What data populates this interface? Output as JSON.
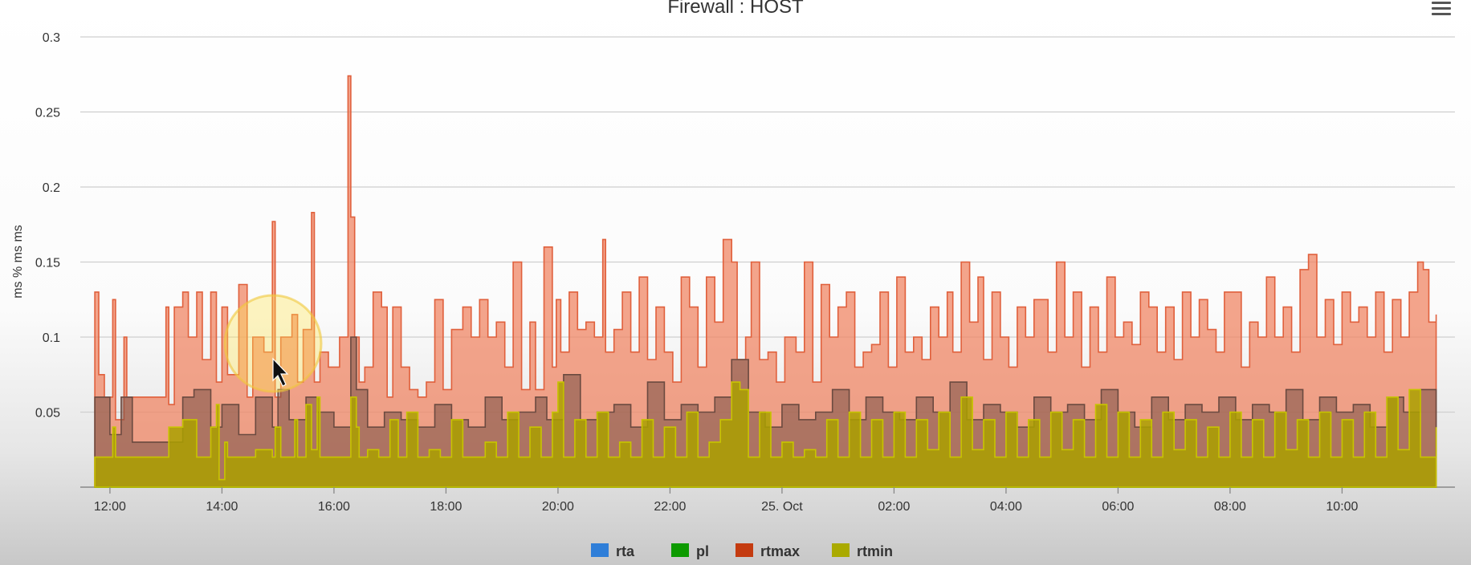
{
  "chart_data": {
    "type": "area",
    "title": "Firewall : HOST",
    "ylabel": "ms % ms ms",
    "xlabel": "",
    "ylim": [
      0,
      0.3
    ],
    "y_ticks": [
      "0.05",
      "0.1",
      "0.15",
      "0.2",
      "0.25",
      "0.3"
    ],
    "y_tick_values": [
      0.05,
      0.1,
      0.15,
      0.2,
      0.25,
      0.3
    ],
    "x_ticks": [
      "12:00",
      "14:00",
      "16:00",
      "18:00",
      "20:00",
      "22:00",
      "25. Oct",
      "02:00",
      "04:00",
      "06:00",
      "08:00",
      "10:00"
    ],
    "x_tick_hours": [
      12,
      14,
      16,
      18,
      20,
      22,
      24,
      26,
      28,
      30,
      32,
      34
    ],
    "xlim_hours": [
      11.7,
      35.7
    ],
    "x_unit_note": "hours after 00:00 on 24 Oct",
    "grid": true,
    "legend_position": "bottom-center",
    "series": [
      {
        "name": "rta",
        "color": "#2f7ed8",
        "x": [
          11.73,
          12.0,
          12.2,
          12.4,
          12.6,
          12.8,
          13.0,
          13.3,
          13.5,
          13.8,
          14.0,
          14.3,
          14.6,
          14.9,
          15.0,
          15.2,
          15.5,
          15.7,
          16.0,
          16.3,
          16.4,
          16.6,
          16.9,
          17.2,
          17.5,
          17.8,
          18.1,
          18.4,
          18.7,
          19.0,
          19.3,
          19.6,
          19.8,
          20.1,
          20.4,
          20.7,
          21.0,
          21.3,
          21.6,
          21.9,
          22.2,
          22.5,
          22.8,
          23.1,
          23.4,
          23.7,
          24.0,
          24.3,
          24.6,
          24.9,
          25.2,
          25.5,
          25.8,
          26.1,
          26.4,
          26.7,
          27.0,
          27.3,
          27.6,
          27.9,
          28.2,
          28.5,
          28.8,
          29.1,
          29.4,
          29.7,
          30.0,
          30.3,
          30.6,
          30.9,
          31.2,
          31.5,
          31.8,
          32.1,
          32.4,
          32.7,
          33.0,
          33.3,
          33.6,
          33.9,
          34.2,
          34.5,
          34.8,
          35.1,
          35.4,
          35.68
        ],
        "y": [
          0.06,
          0.035,
          0.06,
          0.03,
          0.03,
          0.03,
          0.03,
          0.06,
          0.065,
          0.04,
          0.055,
          0.035,
          0.06,
          0.04,
          0.065,
          0.045,
          0.06,
          0.05,
          0.04,
          0.1,
          0.065,
          0.04,
          0.05,
          0.045,
          0.04,
          0.055,
          0.045,
          0.04,
          0.06,
          0.045,
          0.05,
          0.06,
          0.045,
          0.075,
          0.045,
          0.05,
          0.055,
          0.04,
          0.07,
          0.045,
          0.055,
          0.05,
          0.06,
          0.085,
          0.05,
          0.04,
          0.055,
          0.045,
          0.05,
          0.065,
          0.045,
          0.06,
          0.05,
          0.045,
          0.06,
          0.05,
          0.07,
          0.045,
          0.055,
          0.05,
          0.04,
          0.06,
          0.05,
          0.055,
          0.045,
          0.065,
          0.05,
          0.04,
          0.06,
          0.045,
          0.055,
          0.05,
          0.06,
          0.045,
          0.055,
          0.05,
          0.065,
          0.045,
          0.06,
          0.05,
          0.055,
          0.04,
          0.06,
          0.05,
          0.065,
          0.055
        ]
      },
      {
        "name": "pl",
        "color": "#0d9a00",
        "x": [
          11.73,
          35.68
        ],
        "y": [
          0,
          0
        ]
      },
      {
        "name": "rtmax",
        "color": "#c43b10",
        "x": [
          11.73,
          11.8,
          11.9,
          12.05,
          12.1,
          12.25,
          12.3,
          12.5,
          12.7,
          12.9,
          13.0,
          13.05,
          13.15,
          13.3,
          13.4,
          13.55,
          13.65,
          13.8,
          13.9,
          14.0,
          14.1,
          14.3,
          14.45,
          14.55,
          14.75,
          14.9,
          14.95,
          15.05,
          15.25,
          15.35,
          15.45,
          15.6,
          15.65,
          15.75,
          15.9,
          16.1,
          16.25,
          16.3,
          16.37,
          16.45,
          16.55,
          16.7,
          16.85,
          16.95,
          17.05,
          17.2,
          17.35,
          17.5,
          17.65,
          17.8,
          17.95,
          18.1,
          18.3,
          18.45,
          18.6,
          18.75,
          18.9,
          19.05,
          19.2,
          19.35,
          19.5,
          19.6,
          19.75,
          19.9,
          19.97,
          20.05,
          20.2,
          20.35,
          20.5,
          20.65,
          20.8,
          20.85,
          21.0,
          21.15,
          21.3,
          21.45,
          21.6,
          21.75,
          21.9,
          22.05,
          22.2,
          22.35,
          22.5,
          22.65,
          22.8,
          22.95,
          23.1,
          23.2,
          23.35,
          23.45,
          23.6,
          23.75,
          23.9,
          24.05,
          24.25,
          24.4,
          24.55,
          24.7,
          24.85,
          25.0,
          25.15,
          25.3,
          25.45,
          25.6,
          25.75,
          25.9,
          26.05,
          26.2,
          26.35,
          26.5,
          26.65,
          26.8,
          26.95,
          27.05,
          27.2,
          27.35,
          27.5,
          27.6,
          27.75,
          27.9,
          28.05,
          28.2,
          28.35,
          28.5,
          28.65,
          28.75,
          28.9,
          29.05,
          29.2,
          29.35,
          29.5,
          29.65,
          29.8,
          29.95,
          30.1,
          30.25,
          30.4,
          30.55,
          30.7,
          30.85,
          31.0,
          31.15,
          31.3,
          31.45,
          31.6,
          31.75,
          31.9,
          32.05,
          32.2,
          32.35,
          32.5,
          32.65,
          32.8,
          32.95,
          33.1,
          33.25,
          33.4,
          33.55,
          33.7,
          33.85,
          34.0,
          34.15,
          34.3,
          34.45,
          34.6,
          34.75,
          34.9,
          35.05,
          35.2,
          35.35,
          35.45,
          35.55,
          35.68
        ],
        "y": [
          0.13,
          0.075,
          0.06,
          0.125,
          0.045,
          0.1,
          0.06,
          0.06,
          0.06,
          0.06,
          0.12,
          0.055,
          0.12,
          0.13,
          0.1,
          0.13,
          0.085,
          0.13,
          0.07,
          0.12,
          0.075,
          0.135,
          0.06,
          0.1,
          0.09,
          0.177,
          0.06,
          0.1,
          0.115,
          0.07,
          0.105,
          0.183,
          0.07,
          0.09,
          0.08,
          0.1,
          0.274,
          0.18,
          0.1,
          0.07,
          0.08,
          0.13,
          0.12,
          0.06,
          0.12,
          0.08,
          0.065,
          0.06,
          0.07,
          0.125,
          0.065,
          0.105,
          0.12,
          0.1,
          0.125,
          0.1,
          0.11,
          0.08,
          0.15,
          0.065,
          0.11,
          0.065,
          0.16,
          0.08,
          0.125,
          0.09,
          0.13,
          0.105,
          0.11,
          0.1,
          0.165,
          0.09,
          0.105,
          0.13,
          0.09,
          0.14,
          0.085,
          0.12,
          0.09,
          0.07,
          0.14,
          0.12,
          0.08,
          0.14,
          0.11,
          0.165,
          0.15,
          0.085,
          0.1,
          0.15,
          0.085,
          0.09,
          0.07,
          0.1,
          0.09,
          0.15,
          0.07,
          0.135,
          0.1,
          0.12,
          0.13,
          0.08,
          0.09,
          0.095,
          0.13,
          0.08,
          0.14,
          0.09,
          0.1,
          0.085,
          0.12,
          0.1,
          0.13,
          0.09,
          0.15,
          0.11,
          0.14,
          0.085,
          0.13,
          0.1,
          0.08,
          0.12,
          0.1,
          0.125,
          0.125,
          0.09,
          0.15,
          0.1,
          0.13,
          0.08,
          0.12,
          0.09,
          0.14,
          0.1,
          0.11,
          0.095,
          0.13,
          0.12,
          0.09,
          0.12,
          0.085,
          0.13,
          0.1,
          0.125,
          0.105,
          0.09,
          0.13,
          0.13,
          0.08,
          0.11,
          0.1,
          0.14,
          0.1,
          0.12,
          0.09,
          0.145,
          0.155,
          0.1,
          0.125,
          0.095,
          0.13,
          0.11,
          0.12,
          0.1,
          0.13,
          0.09,
          0.125,
          0.1,
          0.13,
          0.15,
          0.145,
          0.11,
          0.115
        ]
      },
      {
        "name": "rtmin",
        "color": "#aaaa00",
        "x": [
          11.73,
          12.0,
          12.05,
          12.1,
          13.0,
          13.05,
          13.3,
          13.5,
          13.55,
          13.8,
          13.9,
          13.95,
          14.05,
          14.1,
          14.3,
          14.6,
          14.9,
          14.95,
          15.05,
          15.3,
          15.35,
          15.5,
          15.6,
          15.7,
          15.75,
          16.3,
          16.4,
          16.45,
          16.6,
          16.8,
          17.0,
          17.15,
          17.3,
          17.5,
          17.7,
          17.9,
          18.1,
          18.3,
          18.5,
          18.7,
          18.9,
          19.1,
          19.3,
          19.5,
          19.7,
          19.9,
          20.0,
          20.1,
          20.3,
          20.5,
          20.7,
          20.9,
          21.1,
          21.3,
          21.5,
          21.7,
          21.9,
          22.1,
          22.3,
          22.5,
          22.7,
          22.9,
          23.1,
          23.25,
          23.4,
          23.6,
          23.8,
          24.0,
          24.2,
          24.4,
          24.6,
          24.8,
          25.0,
          25.2,
          25.4,
          25.6,
          25.8,
          26.0,
          26.2,
          26.4,
          26.6,
          26.8,
          27.0,
          27.2,
          27.4,
          27.6,
          27.8,
          28.0,
          28.2,
          28.4,
          28.6,
          28.8,
          29.0,
          29.2,
          29.4,
          29.6,
          29.8,
          30.0,
          30.2,
          30.4,
          30.6,
          30.8,
          31.0,
          31.2,
          31.4,
          31.6,
          31.8,
          32.0,
          32.2,
          32.4,
          32.6,
          32.8,
          33.0,
          33.2,
          33.4,
          33.6,
          33.8,
          34.0,
          34.2,
          34.4,
          34.6,
          34.8,
          35.0,
          35.2,
          35.4,
          35.68
        ],
        "y": [
          0.02,
          0.02,
          0.04,
          0.02,
          0.02,
          0.04,
          0.045,
          0.045,
          0.02,
          0.04,
          0.055,
          0.005,
          0.03,
          0.02,
          0.02,
          0.025,
          0.02,
          0.04,
          0.02,
          0.045,
          0.02,
          0.055,
          0.025,
          0.06,
          0.02,
          0.06,
          0.04,
          0.02,
          0.025,
          0.02,
          0.045,
          0.02,
          0.05,
          0.02,
          0.025,
          0.02,
          0.045,
          0.02,
          0.02,
          0.03,
          0.02,
          0.05,
          0.02,
          0.04,
          0.02,
          0.05,
          0.07,
          0.02,
          0.045,
          0.02,
          0.05,
          0.02,
          0.03,
          0.02,
          0.045,
          0.02,
          0.04,
          0.02,
          0.05,
          0.02,
          0.03,
          0.045,
          0.07,
          0.065,
          0.02,
          0.05,
          0.02,
          0.03,
          0.02,
          0.025,
          0.02,
          0.045,
          0.02,
          0.05,
          0.02,
          0.045,
          0.02,
          0.05,
          0.02,
          0.045,
          0.025,
          0.05,
          0.02,
          0.06,
          0.025,
          0.045,
          0.02,
          0.05,
          0.02,
          0.045,
          0.02,
          0.05,
          0.025,
          0.045,
          0.02,
          0.055,
          0.02,
          0.05,
          0.02,
          0.045,
          0.02,
          0.05,
          0.025,
          0.045,
          0.02,
          0.04,
          0.02,
          0.05,
          0.02,
          0.045,
          0.02,
          0.05,
          0.025,
          0.045,
          0.02,
          0.05,
          0.02,
          0.045,
          0.02,
          0.05,
          0.02,
          0.06,
          0.025,
          0.065,
          0.02,
          0.04
        ]
      }
    ]
  },
  "menu_icon": "hamburger-menu-icon"
}
